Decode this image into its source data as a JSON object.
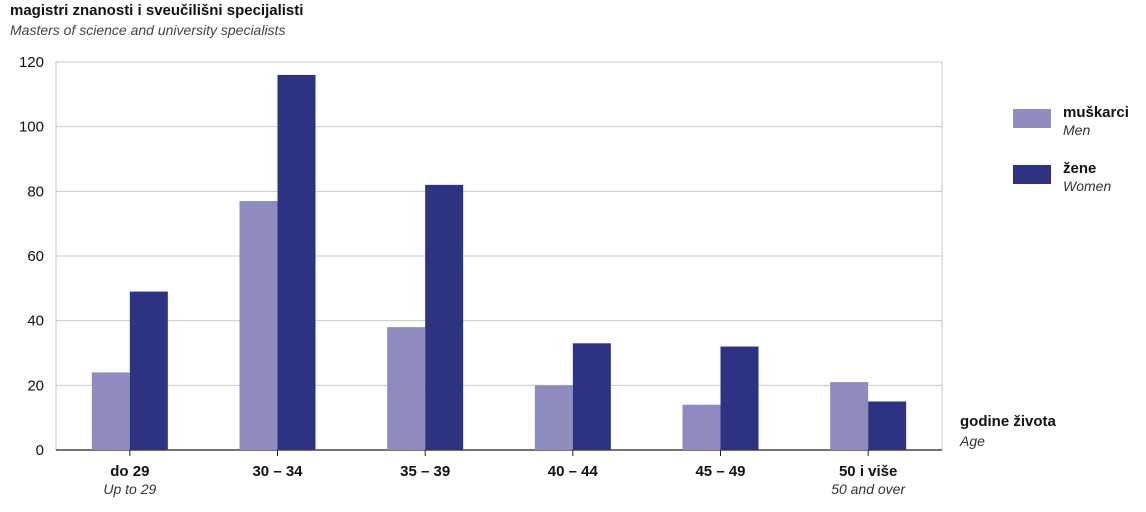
{
  "chart_data": {
    "type": "bar",
    "title": "magistri znanosti i sveučilišni specijalisti",
    "subtitle": "Masters of science and university specialists",
    "xlabel": "godine života",
    "xlabel_sub": "Age",
    "ylabel": "",
    "ylim": [
      0,
      120
    ],
    "yticks": [
      0,
      20,
      40,
      60,
      80,
      100,
      120
    ],
    "grid": true,
    "legend_position": "right",
    "categories": [
      "do 29",
      "30 – 34",
      "35 – 39",
      "40 – 44",
      "45 – 49",
      "50 i više"
    ],
    "category_subs": [
      "Up to 29",
      "",
      "",
      "",
      "",
      "50 and over"
    ],
    "series": [
      {
        "name": "muškarci",
        "name_sub": "Men",
        "color": "#8e8bbe",
        "values": [
          24,
          77,
          38,
          20,
          14,
          21
        ]
      },
      {
        "name": "žene",
        "name_sub": "Women",
        "color": "#2e3282",
        "values": [
          49,
          116,
          82,
          33,
          32,
          15
        ]
      }
    ]
  }
}
